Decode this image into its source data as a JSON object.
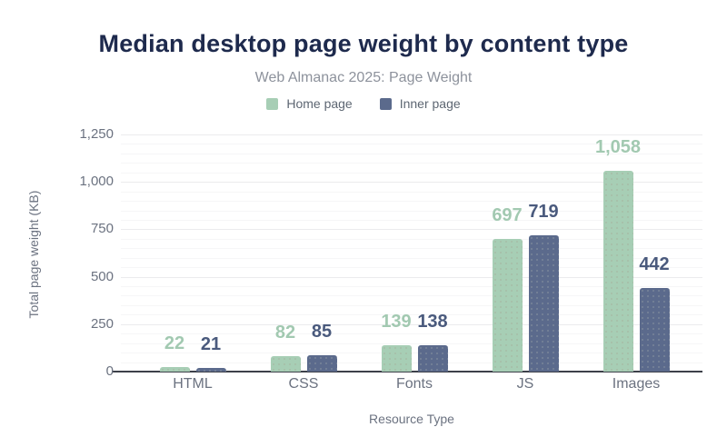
{
  "chart_data": {
    "type": "bar",
    "title": "Median desktop page weight by content type",
    "subtitle": "Web Almanac 2025: Page Weight",
    "xlabel": "Resource Type",
    "ylabel": "Total page weight (KB)",
    "categories": [
      "HTML",
      "CSS",
      "Fonts",
      "JS",
      "Images"
    ],
    "series": [
      {
        "name": "Home page",
        "color": "#a7ceb5",
        "label_color": "#a2c9b1",
        "values": [
          22,
          82,
          139,
          697,
          1058
        ],
        "value_labels": [
          "22",
          "82",
          "139",
          "697",
          "1,058"
        ]
      },
      {
        "name": "Inner page",
        "color": "#5b6a8c",
        "label_color": "#4a5a7d",
        "values": [
          21,
          85,
          138,
          719,
          442
        ],
        "value_labels": [
          "21",
          "85",
          "138",
          "719",
          "442"
        ]
      }
    ],
    "ylim": [
      0,
      1250
    ],
    "yticks": [
      0,
      250,
      500,
      750,
      1000,
      1250
    ],
    "ytick_labels": [
      "0",
      "250",
      "500",
      "750",
      "1,000",
      "1,250"
    ],
    "minor_grid_step": 50,
    "grid": true,
    "legend_position": "top"
  }
}
